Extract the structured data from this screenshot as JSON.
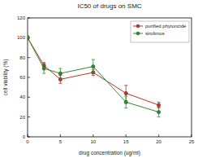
{
  "chart_data": {
    "type": "line",
    "title": "IC50 of drugs on SMC",
    "x_label": "drug concentration (ug/ml)",
    "y_label": "cell viability (%)",
    "x": [
      0,
      2.5,
      5,
      10,
      15,
      20
    ],
    "series": [
      {
        "name": "purified phytoncide",
        "color": "#c0302a",
        "marker": "circle",
        "values": [
          100,
          72,
          58,
          65,
          44,
          32
        ],
        "errors": [
          1,
          3,
          4,
          3,
          8,
          3
        ]
      },
      {
        "name": "sirolimus",
        "color": "#2e8b2e",
        "marker": "circle",
        "values": [
          100,
          69,
          64,
          71,
          35,
          25
        ],
        "errors": [
          2,
          5,
          5,
          7,
          6,
          5
        ]
      }
    ],
    "xlim": [
      0,
      25
    ],
    "xticks": [
      0,
      5,
      10,
      15,
      20,
      25
    ],
    "ylim": [
      0,
      120
    ],
    "yticks": [
      0,
      20,
      40,
      60,
      80,
      100,
      120
    ],
    "legend": "top-right",
    "grid": false
  }
}
